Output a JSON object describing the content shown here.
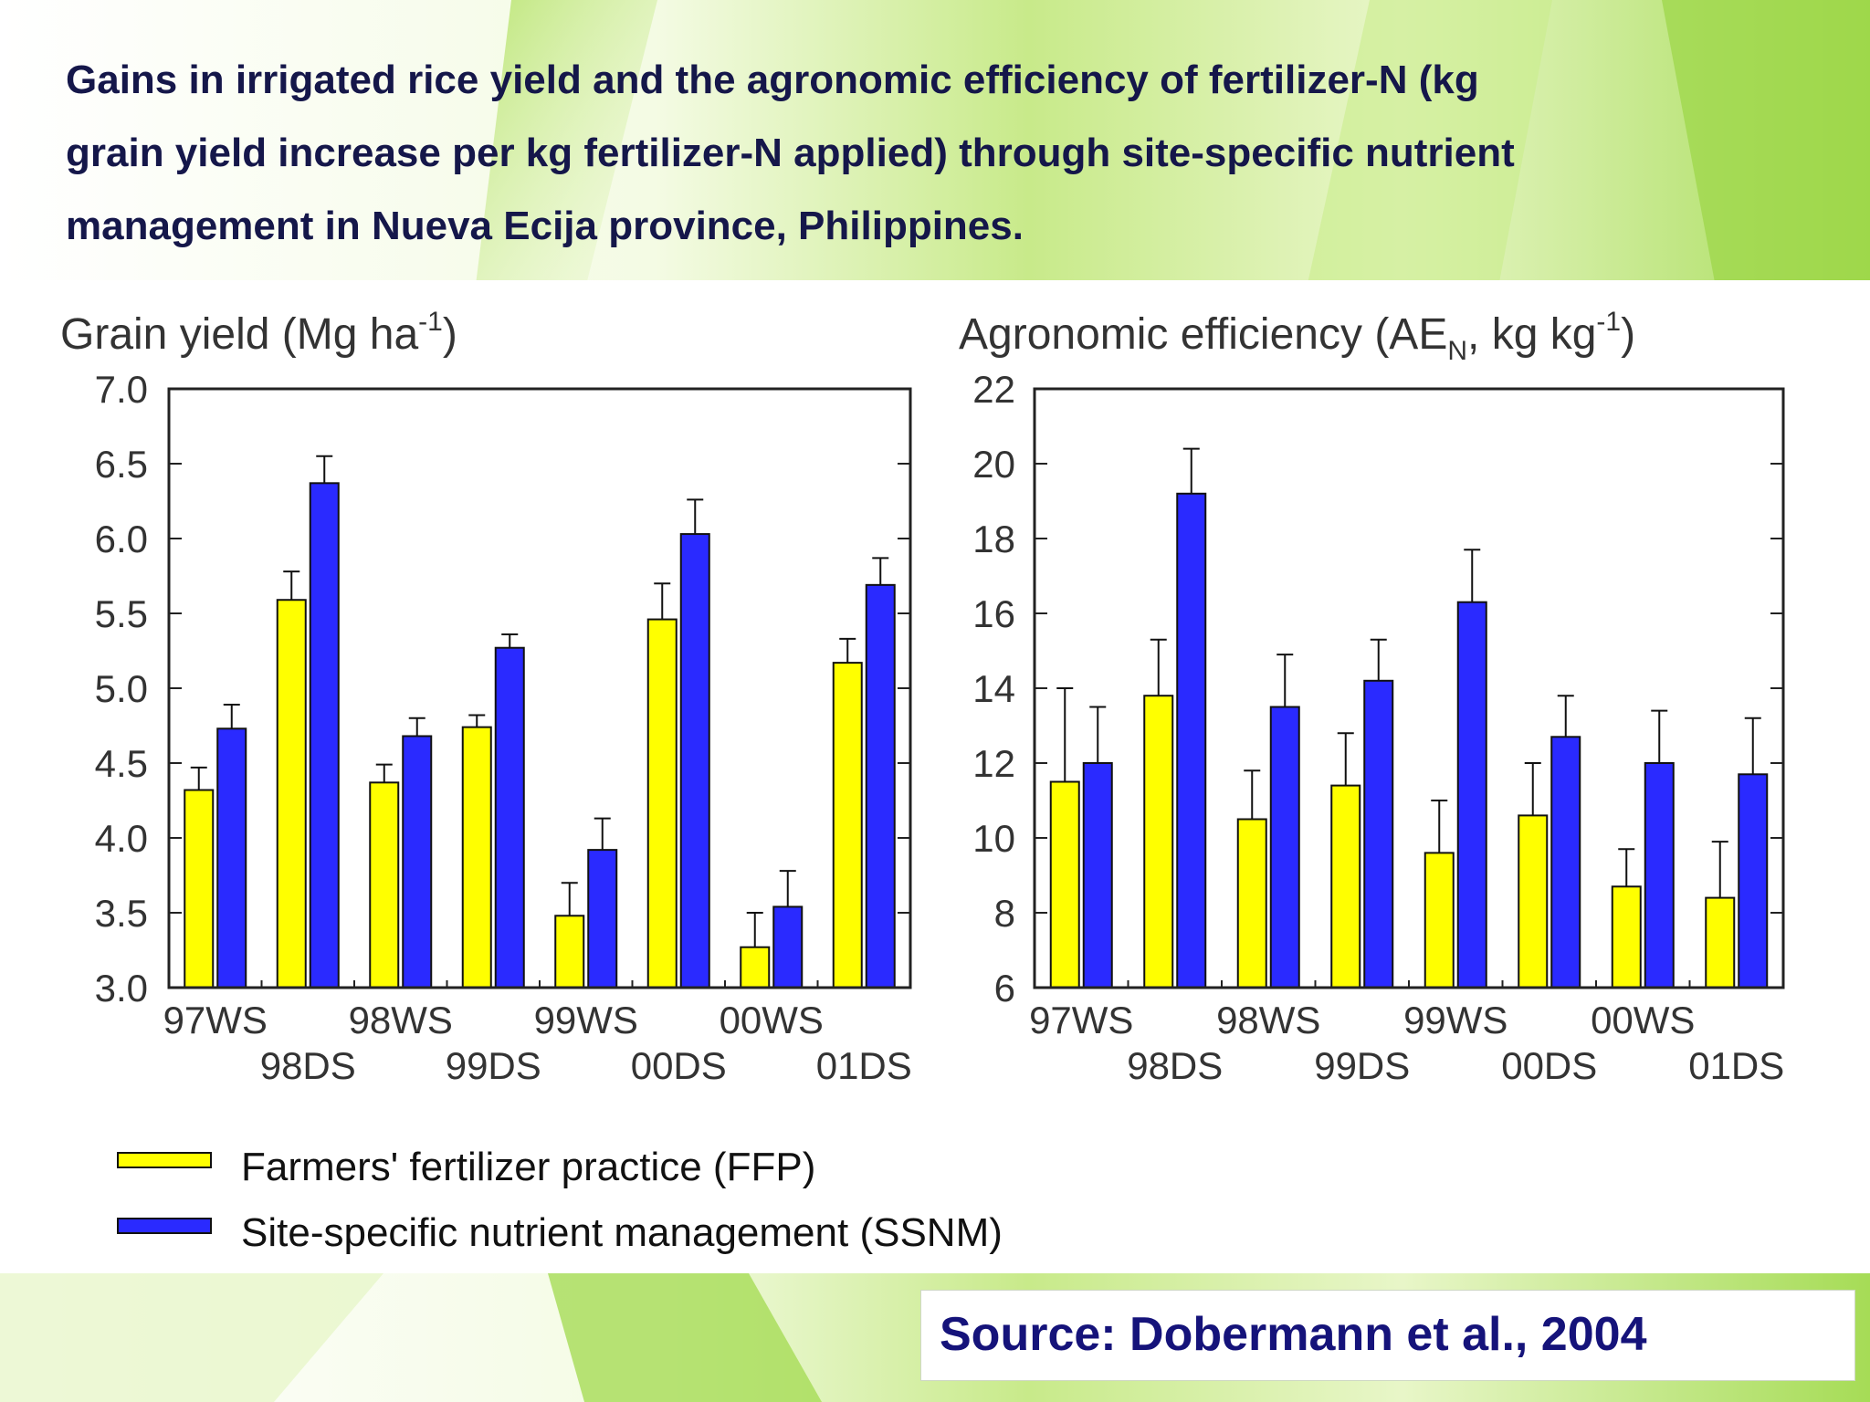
{
  "slide": {
    "title_lines": [
      "Gains in irrigated rice yield and the agronomic efficiency of fertilizer-N (kg",
      "grain yield increase per kg fertilizer-N applied) through site-specific nutrient",
      "management in Nueva Ecija province, Philippines."
    ],
    "source": "Source: Dobermann et al., 2004",
    "background_colors": {
      "accent": "#9ed64a",
      "light": "#e9f7c6",
      "page": "#ffffff"
    }
  },
  "legend": {
    "items": [
      {
        "label": "Farmers' fertilizer practice (FFP)",
        "color": "#ffff00"
      },
      {
        "label": "Site-specific nutrient management (SSNM)",
        "color": "#2a2aff"
      }
    ],
    "placement": "bottom-left"
  },
  "chart_data": [
    {
      "type": "bar",
      "title_parts": {
        "main": "Grain yield (Mg ha",
        "sup": "-1",
        "tail": ")"
      },
      "categories": [
        "97WS",
        "98DS",
        "98WS",
        "99DS",
        "99WS",
        "00DS",
        "00WS",
        "01DS"
      ],
      "ylim": [
        3.0,
        7.0
      ],
      "yticks": [
        "3.0",
        "3.5",
        "4.0",
        "4.5",
        "5.0",
        "5.5",
        "6.0",
        "6.5",
        "7.0"
      ],
      "ytick_values": [
        3.0,
        3.5,
        4.0,
        4.5,
        5.0,
        5.5,
        6.0,
        6.5,
        7.0
      ],
      "grid": false,
      "series": [
        {
          "name": "Farmers' fertilizer practice (FFP)",
          "color": "#ffff00",
          "values": [
            4.32,
            5.59,
            4.37,
            4.74,
            3.48,
            5.46,
            3.27,
            5.17
          ],
          "error_upper": [
            4.47,
            5.78,
            4.49,
            4.82,
            3.7,
            5.7,
            3.5,
            5.33
          ]
        },
        {
          "name": "Site-specific nutrient management (SSNM)",
          "color": "#2a2aff",
          "values": [
            4.73,
            6.37,
            4.68,
            5.27,
            3.92,
            6.03,
            3.54,
            5.69
          ],
          "error_upper": [
            4.89,
            6.55,
            4.8,
            5.36,
            4.13,
            6.26,
            3.78,
            5.87
          ]
        }
      ]
    },
    {
      "type": "bar",
      "title_parts": {
        "main": "Agronomic efficiency (AE",
        "sub": "N",
        "mid": ", kg kg",
        "sup": "-1",
        "tail": ")"
      },
      "categories": [
        "97WS",
        "98DS",
        "98WS",
        "99DS",
        "99WS",
        "00DS",
        "00WS",
        "01DS"
      ],
      "ylim": [
        6,
        22
      ],
      "yticks": [
        "6",
        "8",
        "10",
        "12",
        "14",
        "16",
        "18",
        "20",
        "22"
      ],
      "ytick_values": [
        6,
        8,
        10,
        12,
        14,
        16,
        18,
        20,
        22
      ],
      "grid": false,
      "series": [
        {
          "name": "Farmers' fertilizer practice (FFP)",
          "color": "#ffff00",
          "values": [
            11.5,
            13.8,
            10.5,
            11.4,
            9.6,
            10.6,
            8.7,
            8.4
          ],
          "error_upper": [
            14.0,
            15.3,
            11.8,
            12.8,
            11.0,
            12.0,
            9.7,
            9.9
          ]
        },
        {
          "name": "Site-specific nutrient management (SSNM)",
          "color": "#2a2aff",
          "values": [
            12.0,
            19.2,
            13.5,
            14.2,
            16.3,
            12.7,
            12.0,
            11.7
          ],
          "error_upper": [
            13.5,
            20.4,
            14.9,
            15.3,
            17.7,
            13.8,
            13.4,
            13.2
          ]
        }
      ]
    }
  ]
}
